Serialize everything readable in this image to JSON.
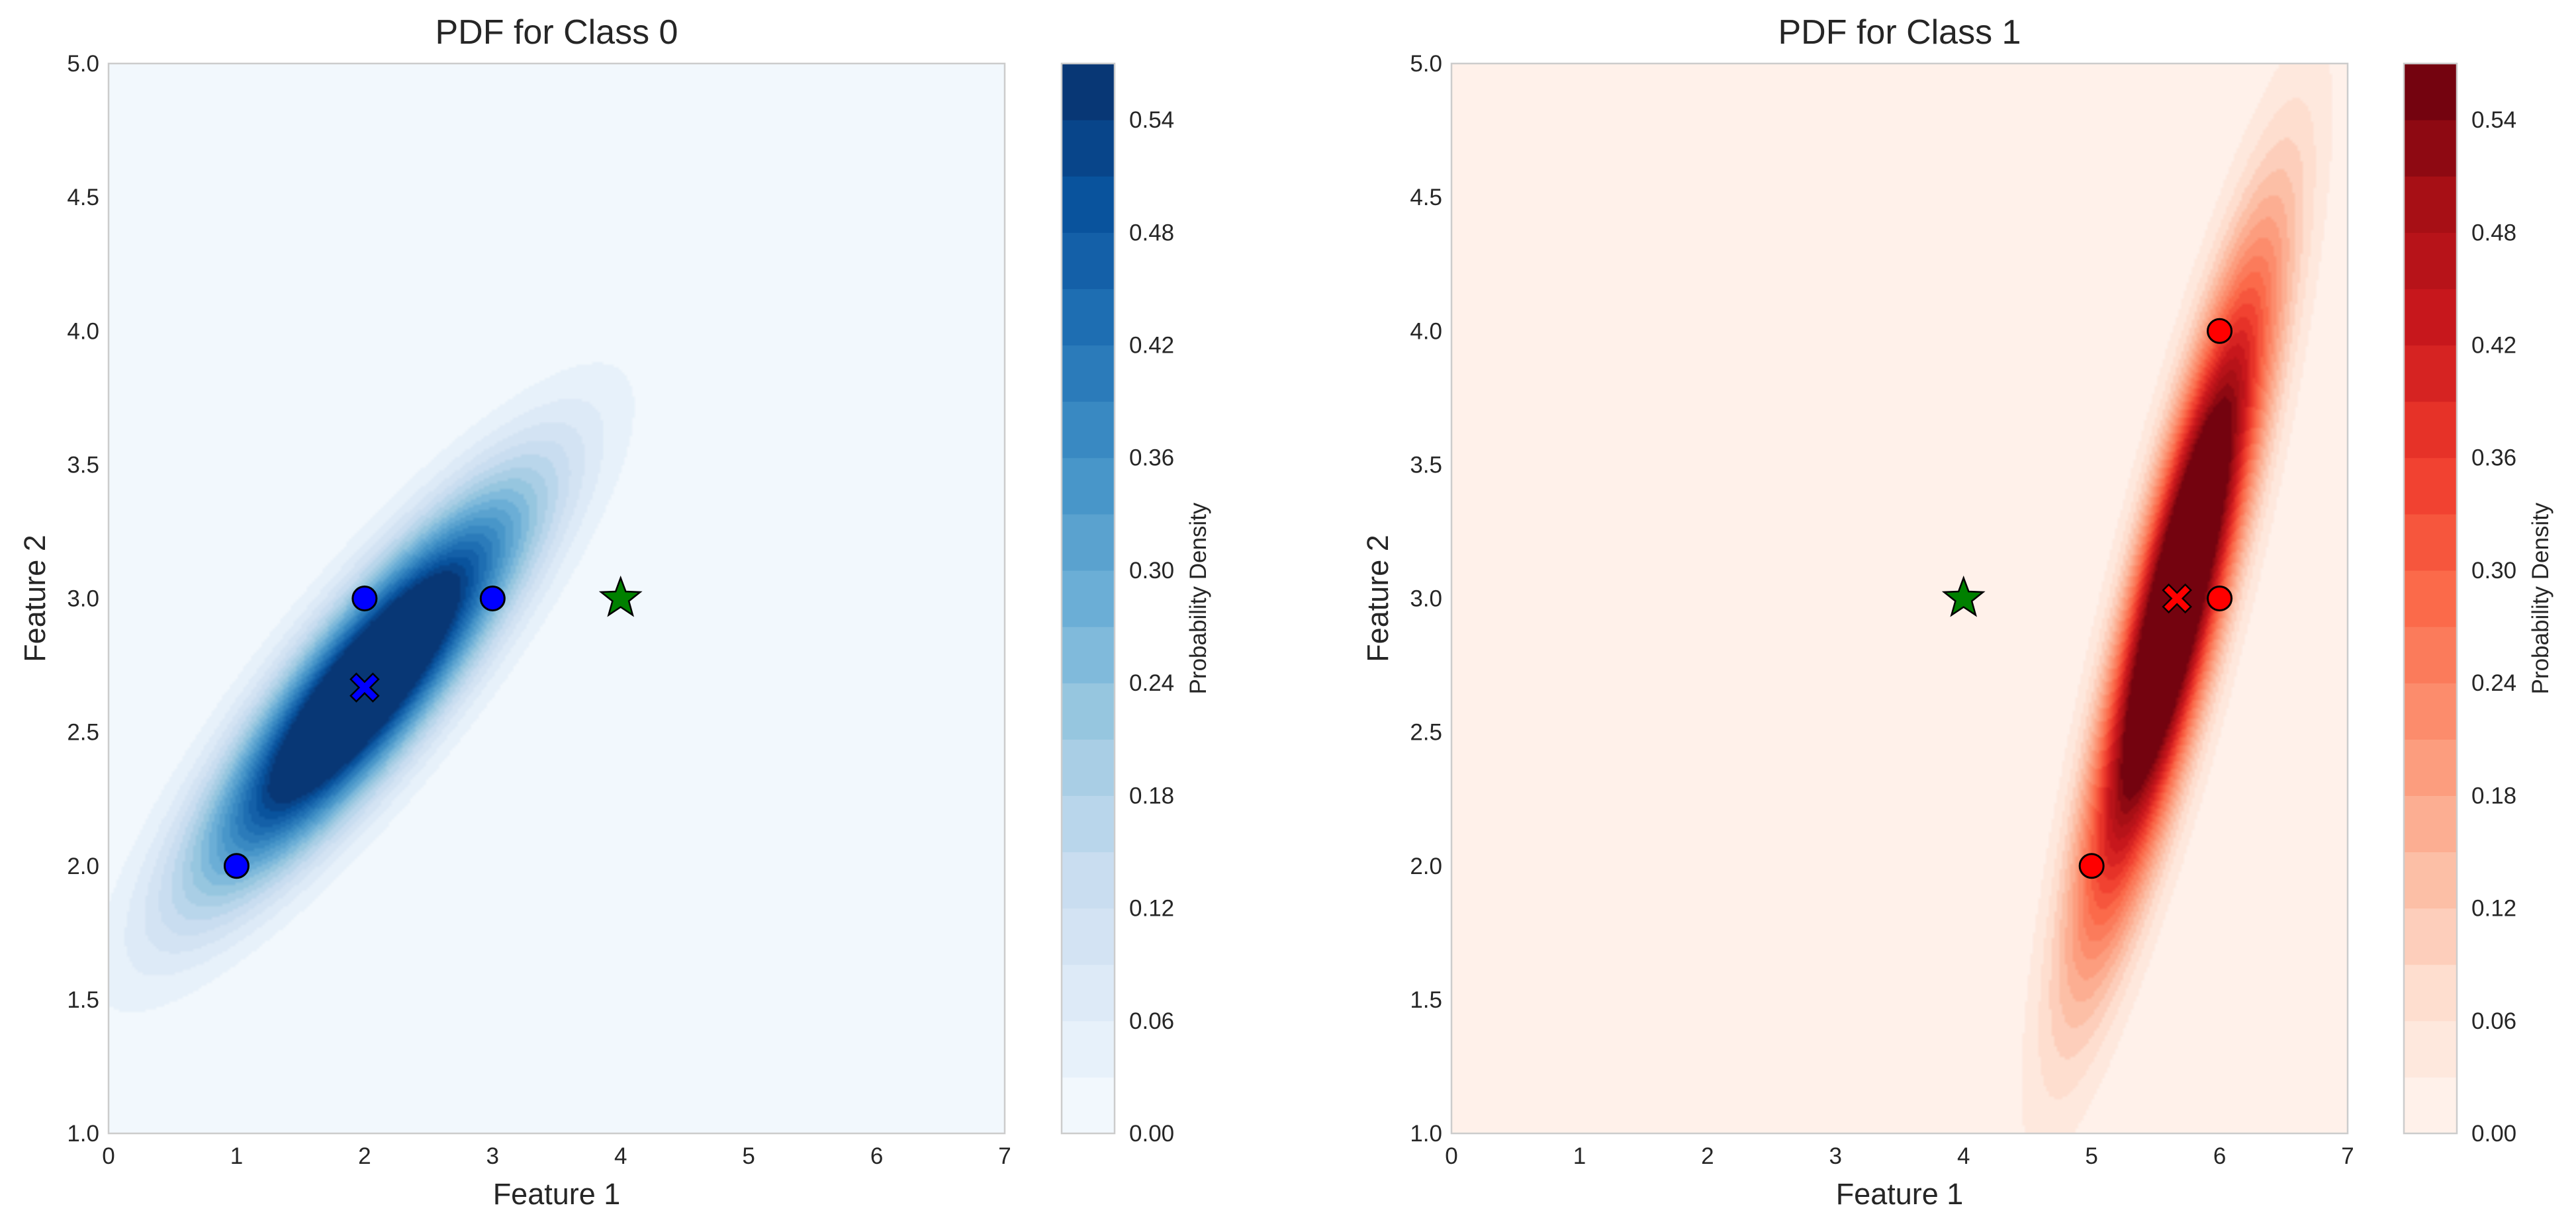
{
  "chart_data": [
    {
      "type": "contour",
      "title": "PDF for Class 0",
      "xlabel": "Feature 1",
      "ylabel": "Feature 2",
      "xlim": [
        0,
        7
      ],
      "ylim": [
        1.0,
        5.0
      ],
      "xticks": [
        "0",
        "1",
        "2",
        "3",
        "4",
        "5",
        "6",
        "7"
      ],
      "yticks": [
        "1.0",
        "1.5",
        "2.0",
        "2.5",
        "3.0",
        "3.5",
        "4.0",
        "4.5",
        "5.0"
      ],
      "grid": false,
      "colormap": "Blues",
      "colors": [
        "#f7fbff",
        "#deebf7",
        "#c6dbef",
        "#9ecae1",
        "#6baed6",
        "#4292c6",
        "#2171b5",
        "#08519c",
        "#08306b"
      ],
      "point_color": "#0000ff",
      "colorbar": {
        "label": "Probability Density",
        "ticks": [
          "0.00",
          "0.06",
          "0.12",
          "0.18",
          "0.24",
          "0.30",
          "0.36",
          "0.42",
          "0.48",
          "0.54"
        ],
        "range": [
          0,
          0.57
        ]
      },
      "gaussian": {
        "mean": [
          2.0,
          2.667
        ],
        "cov": [
          [
            0.667,
            0.333
          ],
          [
            0.333,
            0.222
          ]
        ]
      },
      "training_points": [
        [
          1,
          2
        ],
        [
          2,
          3
        ],
        [
          3,
          3
        ]
      ],
      "mean_marker": [
        2.0,
        2.667
      ],
      "test_point": [
        4,
        3
      ]
    },
    {
      "type": "contour",
      "title": "PDF for Class 1",
      "xlabel": "Feature 1",
      "ylabel": "Feature 2",
      "xlim": [
        0,
        7
      ],
      "ylim": [
        1.0,
        5.0
      ],
      "xticks": [
        "0",
        "1",
        "2",
        "3",
        "4",
        "5",
        "6",
        "7"
      ],
      "yticks": [
        "1.0",
        "1.5",
        "2.0",
        "2.5",
        "3.0",
        "3.5",
        "4.0",
        "4.5",
        "5.0"
      ],
      "grid": false,
      "colormap": "Reds",
      "colors": [
        "#fff5f0",
        "#fee0d2",
        "#fcbba1",
        "#fc9272",
        "#fb6a4a",
        "#ef3b2c",
        "#cb181d",
        "#a50f15",
        "#67000d"
      ],
      "point_color": "#ff0000",
      "colorbar": {
        "label": "Probability Density",
        "ticks": [
          "0.00",
          "0.06",
          "0.12",
          "0.18",
          "0.24",
          "0.30",
          "0.36",
          "0.42",
          "0.48",
          "0.54"
        ],
        "range": [
          0,
          0.57
        ]
      },
      "gaussian": {
        "mean": [
          5.667,
          3.0
        ],
        "cov": [
          [
            0.222,
            0.333
          ],
          [
            0.333,
            0.667
          ]
        ]
      },
      "training_points": [
        [
          5,
          2
        ],
        [
          6,
          3
        ],
        [
          6,
          4
        ]
      ],
      "mean_marker": [
        5.667,
        3.0
      ],
      "test_point": [
        4,
        3
      ]
    }
  ]
}
